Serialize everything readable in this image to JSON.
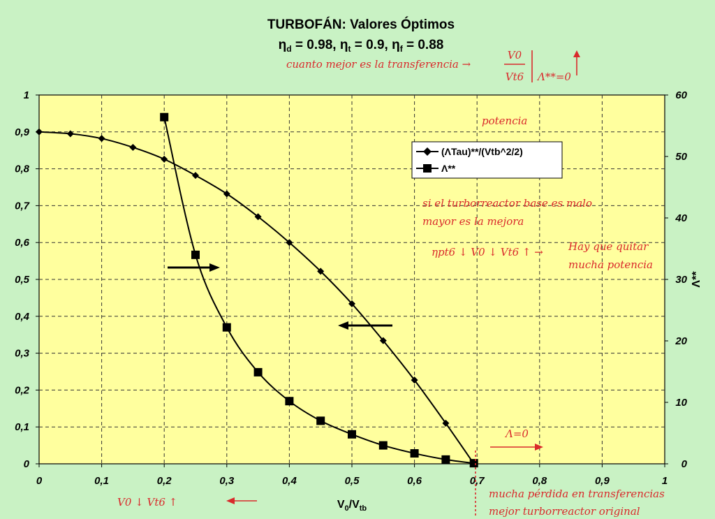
{
  "chart_data": {
    "type": "line",
    "title": "TURBOFÁN: Valores Óptimos",
    "subtitle": {
      "eta_d": "= 0.98,",
      "eta_t": "= 0.9,",
      "eta_f": "= 0.88"
    },
    "xlabel": "V0/Vtb",
    "xlabel_main": "V",
    "xlabel_sub1": "0",
    "xlabel_sep": "/V",
    "xlabel_sub2": "tb",
    "ylabel_right": "Λ**",
    "xlim": [
      0,
      1
    ],
    "ylim": [
      0,
      1
    ],
    "ylim_right": [
      0,
      60
    ],
    "x_ticks": [
      "0",
      "0,1",
      "0,2",
      "0,3",
      "0,4",
      "0,5",
      "0,6",
      "0,7",
      "0,8",
      "0,9",
      "1"
    ],
    "y_ticks": [
      "0",
      "0,1",
      "0,2",
      "0,3",
      "0,4",
      "0,5",
      "0,6",
      "0,7",
      "0,8",
      "0,9",
      "1"
    ],
    "y2_ticks": [
      "0",
      "10",
      "20",
      "30",
      "40",
      "50",
      "60"
    ],
    "grid": true,
    "legend_placement": "right",
    "series": [
      {
        "name": "(ΛTau)**/(Vtb^2/2)",
        "axis": "left",
        "marker": "diamond",
        "x": [
          0,
          0.05,
          0.1,
          0.15,
          0.2,
          0.25,
          0.3,
          0.35,
          0.4,
          0.45,
          0.5,
          0.55,
          0.6,
          0.65,
          0.695
        ],
        "y": [
          0.9,
          0.895,
          0.882,
          0.858,
          0.826,
          0.782,
          0.732,
          0.67,
          0.6,
          0.522,
          0.434,
          0.334,
          0.227,
          0.11,
          0.0
        ]
      },
      {
        "name": "Λ**",
        "axis": "right",
        "marker": "square",
        "x": [
          0.2,
          0.25,
          0.3,
          0.35,
          0.4,
          0.45,
          0.5,
          0.55,
          0.6,
          0.65,
          0.695
        ],
        "y": [
          56.4,
          34.0,
          22.2,
          14.9,
          10.2,
          7.0,
          4.8,
          3.0,
          1.7,
          0.7,
          0.1
        ]
      }
    ],
    "annotations": {
      "top": "cuanto mejor es la transferencia →",
      "top_frac_num": "V0",
      "top_frac_den": "Vt6",
      "top_lambda": "Λ**=0",
      "potencia": "potencia",
      "base1": "si el turborreactor base es malo",
      "base2": "mayor es la mejora",
      "eta_line": "ηpt6 ↓ V0 ↓ Vt6 ↑ →",
      "hay1": "Hay que quitar",
      "hay2": "mucha potencia",
      "lambda_zero": "Λ=0",
      "bottom_left": "V0 ↓ Vt6 ↑",
      "bottom_right1": "mucha pérdida en transferencias",
      "bottom_right2": "mejor turborreactor original"
    }
  }
}
